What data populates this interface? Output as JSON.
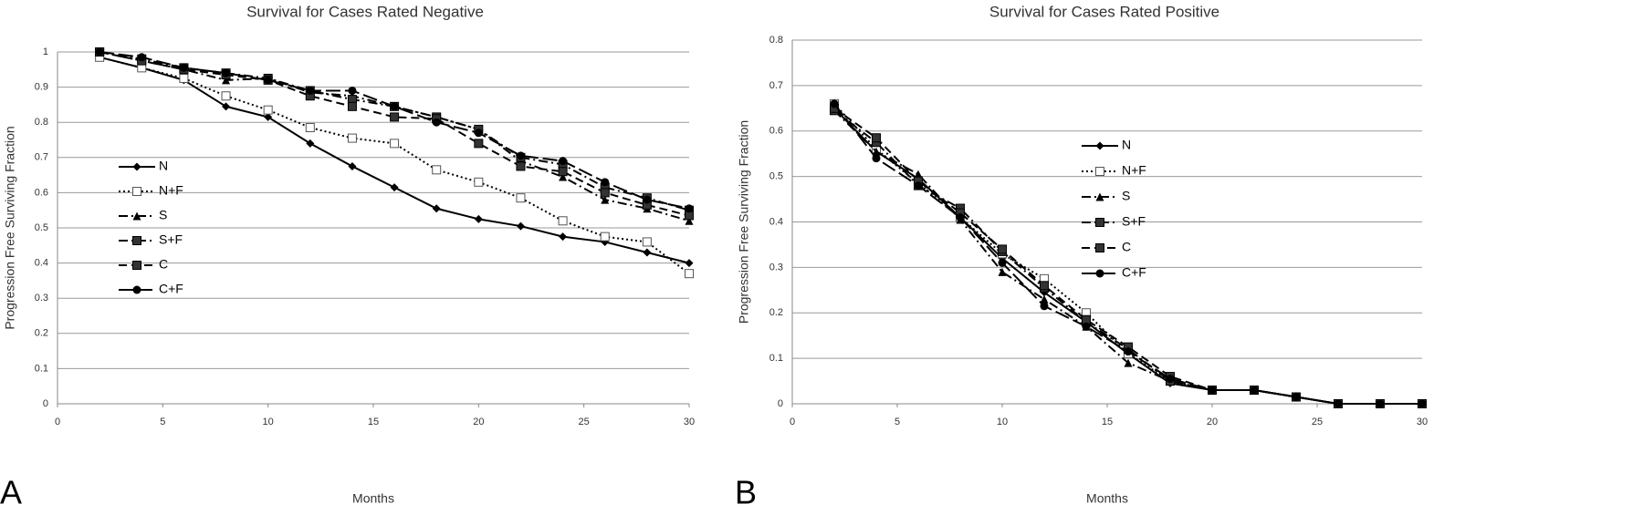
{
  "chart_data": [
    {
      "type": "line",
      "panel_label": "A",
      "title": "Survival for Cases Rated Negative",
      "x_label": "Months",
      "y_label": "Progression Free Surviving Fraction",
      "x": [
        2,
        4,
        6,
        8,
        10,
        12,
        14,
        16,
        18,
        20,
        22,
        24,
        26,
        28,
        30
      ],
      "xlim": [
        0,
        30
      ],
      "xticks": [
        0,
        5,
        10,
        15,
        20,
        25,
        30
      ],
      "ylim": [
        0,
        1
      ],
      "yticks": [
        0,
        0.1,
        0.2,
        0.3,
        0.4,
        0.5,
        0.6,
        0.7,
        0.8,
        0.9,
        1
      ],
      "grid": true,
      "series": [
        {
          "name": "N",
          "color": "#000000",
          "dash": "solid",
          "marker": "diamond",
          "values": [
            0.985,
            0.955,
            0.92,
            0.845,
            0.815,
            0.74,
            0.675,
            0.615,
            0.555,
            0.525,
            0.505,
            0.475,
            0.46,
            0.43,
            0.4
          ]
        },
        {
          "name": "N+F",
          "color": "#000000",
          "dash": "dot",
          "marker": "open-square",
          "values": [
            0.985,
            0.955,
            0.925,
            0.875,
            0.835,
            0.785,
            0.755,
            0.74,
            0.665,
            0.63,
            0.585,
            0.52,
            0.475,
            0.46,
            0.37
          ]
        },
        {
          "name": "S",
          "color": "#000000",
          "dash": "dashdot",
          "marker": "triangle",
          "values": [
            1.0,
            0.975,
            0.95,
            0.92,
            0.925,
            0.885,
            0.875,
            0.845,
            0.815,
            0.78,
            0.69,
            0.645,
            0.58,
            0.555,
            0.52
          ]
        },
        {
          "name": "S+F",
          "color": "#000000",
          "dash": "dashdot",
          "marker": "square",
          "values": [
            1.0,
            0.98,
            0.955,
            0.94,
            0.925,
            0.89,
            0.865,
            0.845,
            0.815,
            0.78,
            0.7,
            0.68,
            0.615,
            0.585,
            0.55
          ]
        },
        {
          "name": "C",
          "color": "#000000",
          "dash": "dash",
          "marker": "square",
          "values": [
            1.0,
            0.975,
            0.95,
            0.935,
            0.92,
            0.875,
            0.845,
            0.815,
            0.81,
            0.74,
            0.675,
            0.66,
            0.6,
            0.565,
            0.535
          ]
        },
        {
          "name": "C+F",
          "color": "#000000",
          "dash": "longdash",
          "marker": "circle",
          "values": [
            1.0,
            0.985,
            0.955,
            0.94,
            0.92,
            0.89,
            0.89,
            0.845,
            0.8,
            0.77,
            0.705,
            0.69,
            0.63,
            0.58,
            0.555
          ]
        }
      ]
    },
    {
      "type": "line",
      "panel_label": "B",
      "title": "Survival for Cases Rated Positive",
      "x_label": "Months",
      "y_label": "Progression Free Surviving Fraction",
      "x": [
        2,
        4,
        6,
        8,
        10,
        12,
        14,
        16,
        18,
        20,
        22,
        24,
        26,
        28,
        30
      ],
      "xlim": [
        0,
        30
      ],
      "xticks": [
        0,
        5,
        10,
        15,
        20,
        25,
        30
      ],
      "ylim": [
        0,
        0.8
      ],
      "yticks": [
        0,
        0.1,
        0.2,
        0.3,
        0.4,
        0.5,
        0.6,
        0.7,
        0.8
      ],
      "grid": true,
      "series": [
        {
          "name": "N",
          "color": "#000000",
          "dash": "solid",
          "marker": "diamond",
          "values": [
            0.65,
            0.555,
            0.495,
            0.41,
            0.32,
            0.245,
            0.18,
            0.11,
            0.045,
            0.03,
            0.03,
            0.015,
            0,
            0,
            0
          ]
        },
        {
          "name": "N+F",
          "color": "#000000",
          "dash": "dot",
          "marker": "open-square",
          "values": [
            0.66,
            0.56,
            0.485,
            0.41,
            0.33,
            0.275,
            0.2,
            0.11,
            0.05,
            0.03,
            0.03,
            0.015,
            0,
            0,
            0
          ]
        },
        {
          "name": "S",
          "color": "#000000",
          "dash": "dashdot",
          "marker": "triangle",
          "values": [
            0.645,
            0.555,
            0.505,
            0.405,
            0.29,
            0.23,
            0.17,
            0.09,
            0.05,
            0.03,
            0.03,
            0.015,
            0,
            0,
            0
          ]
        },
        {
          "name": "S+F",
          "color": "#000000",
          "dash": "dashdot",
          "marker": "square",
          "values": [
            0.645,
            0.575,
            0.48,
            0.43,
            0.335,
            0.255,
            0.18,
            0.12,
            0.05,
            0.03,
            0.03,
            0.015,
            0,
            0,
            0
          ]
        },
        {
          "name": "C",
          "color": "#000000",
          "dash": "dash",
          "marker": "square",
          "values": [
            0.65,
            0.585,
            0.49,
            0.42,
            0.34,
            0.26,
            0.185,
            0.125,
            0.06,
            0.03,
            0.03,
            0.015,
            0,
            0,
            0
          ]
        },
        {
          "name": "C+F",
          "color": "#000000",
          "dash": "longdash",
          "marker": "circle",
          "values": [
            0.66,
            0.54,
            0.48,
            0.41,
            0.31,
            0.215,
            0.17,
            0.115,
            0.055,
            0.03,
            0.03,
            0.015,
            0,
            0,
            0
          ]
        }
      ]
    }
  ]
}
